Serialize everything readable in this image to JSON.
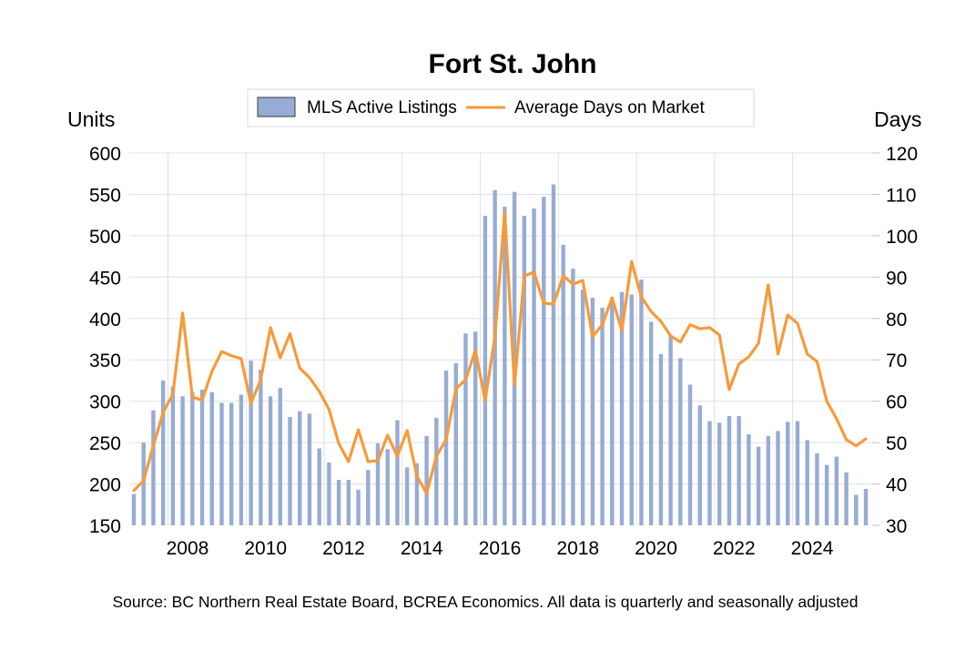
{
  "chart_data": {
    "type": "bar+line",
    "title": "Fort St. John",
    "left_axis": {
      "label": "Units",
      "ylim": [
        150,
        600
      ],
      "ticks": [
        150,
        200,
        250,
        300,
        350,
        400,
        450,
        500,
        550,
        600
      ]
    },
    "right_axis": {
      "label": "Days",
      "ylim": [
        30,
        120
      ],
      "ticks": [
        30,
        40,
        50,
        60,
        70,
        80,
        90,
        100,
        110,
        120
      ]
    },
    "x_start": "2007 Q1",
    "x_end": "2025 Q4",
    "x_tick_labels": [
      "2008",
      "2010",
      "2012",
      "2014",
      "2016",
      "2018",
      "2020",
      "2022",
      "2024"
    ],
    "x_tick_years": [
      2008,
      2010,
      2012,
      2014,
      2016,
      2018,
      2020,
      2022,
      2024
    ],
    "first_year": 2007,
    "grid": true,
    "legend_position": "top-center",
    "series": [
      {
        "name": "MLS Active Listings",
        "type": "bar",
        "axis": "left",
        "color": "#97acd4",
        "values": [
          188,
          250,
          289,
          325,
          318,
          306,
          311,
          314,
          311,
          298,
          298,
          308,
          349,
          338,
          306,
          316,
          281,
          288,
          285,
          243,
          226,
          205,
          205,
          193,
          217,
          249,
          242,
          277,
          220,
          225,
          258,
          280,
          337,
          346,
          382,
          384,
          524,
          555,
          535,
          553,
          524,
          533,
          547,
          562,
          489,
          460,
          435,
          425,
          413,
          422,
          432,
          429,
          447,
          396,
          357,
          378,
          352,
          320,
          295,
          276,
          274,
          282,
          282,
          260,
          245,
          258,
          264,
          275,
          276,
          253,
          237,
          223,
          233,
          214,
          187,
          194
        ]
      },
      {
        "name": "Average Days on Market",
        "type": "line",
        "axis": "right",
        "color": "#f79a3a",
        "values": [
          38.4,
          40.8,
          49.2,
          57.3,
          61.7,
          81.3,
          61.0,
          60.3,
          67.2,
          72.0,
          71.0,
          70.3,
          59.5,
          65.2,
          77.8,
          70.5,
          76.3,
          68.0,
          65.7,
          62.4,
          58.0,
          49.8,
          45.4,
          53.1,
          45.4,
          45.6,
          51.8,
          46.7,
          52.9,
          41.9,
          37.7,
          46.7,
          50.7,
          63.0,
          65.2,
          72.3,
          60.2,
          75.6,
          105.7,
          63.9,
          90.3,
          91.2,
          83.7,
          83.5,
          90.3,
          88.3,
          89.2,
          75.6,
          78.5,
          85.0,
          77.1,
          93.8,
          85.2,
          81.7,
          79.3,
          75.8,
          74.3,
          78.5,
          77.5,
          77.8,
          76.0,
          62.8,
          69.0,
          70.7,
          74.0,
          88.1,
          71.4,
          80.8,
          78.8,
          71.4,
          69.6,
          60.0,
          55.8,
          50.7,
          49.2,
          50.9
        ]
      }
    ],
    "source": "Source: BC Northern Real Estate Board, BCREA Economics. All data is quarterly and seasonally adjusted"
  }
}
